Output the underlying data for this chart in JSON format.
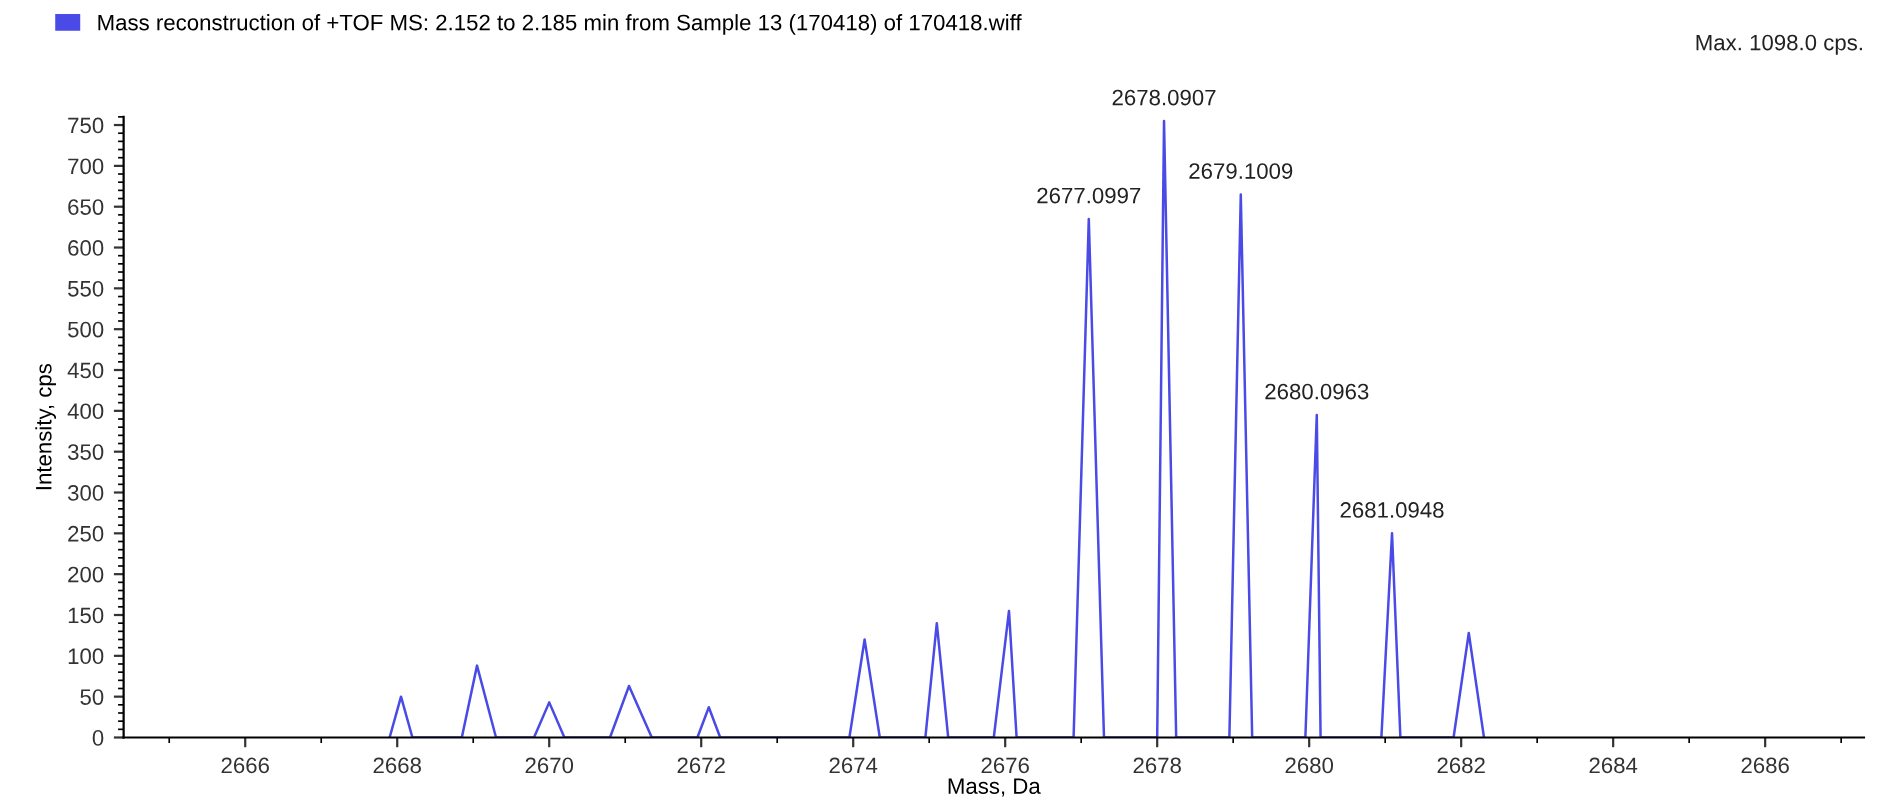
{
  "chart_data": {
    "type": "line",
    "xlabel": "Mass, Da",
    "ylabel": "Intensity, cps",
    "xlim": [
      2664.4,
      2687.3
    ],
    "ylim": [
      0,
      760
    ],
    "xticks": [
      2666,
      2668,
      2670,
      2672,
      2674,
      2676,
      2678,
      2680,
      2682,
      2684,
      2686
    ],
    "yticks": [
      0,
      50,
      100,
      150,
      200,
      250,
      300,
      350,
      400,
      450,
      500,
      550,
      600,
      650,
      700,
      750
    ],
    "grid": false,
    "legend": "top left",
    "marker": "none",
    "line_style": "solid",
    "series": [
      {
        "name": "Mass reconstruction of +TOF MS: 2.152 to 2.185 min from Sample 13 (170418) of 170418.wiff",
        "color": "#4a4ae6",
        "x": [
          2667.9,
          2668.05,
          2668.2,
          2668.85,
          2669.05,
          2669.3,
          2669.8,
          2670.0,
          2670.2,
          2670.8,
          2671.05,
          2671.35,
          2671.95,
          2672.1,
          2672.25,
          2673.95,
          2674.15,
          2674.35,
          2674.95,
          2675.1,
          2675.25,
          2675.85,
          2676.05,
          2676.15,
          2676.9,
          2677.1,
          2677.3,
          2678.0,
          2678.09,
          2678.25,
          2678.95,
          2679.1,
          2679.25,
          2679.95,
          2680.1,
          2680.15,
          2680.95,
          2681.09,
          2681.2,
          2681.9,
          2682.1,
          2682.3
        ],
        "values": [
          0,
          50,
          0,
          0,
          88,
          0,
          0,
          43,
          0,
          0,
          63,
          0,
          0,
          37,
          0,
          0,
          120,
          0,
          0,
          140,
          0,
          0,
          155,
          0,
          0,
          635,
          0,
          0,
          755,
          0,
          0,
          665,
          0,
          0,
          395,
          0,
          0,
          250,
          0,
          0,
          128,
          0
        ]
      }
    ],
    "annotations": [
      {
        "text": "2677.0997",
        "x": 2677.1,
        "y": 635
      },
      {
        "text": "2678.0907",
        "x": 2678.09,
        "y": 755
      },
      {
        "text": "2679.1009",
        "x": 2679.1,
        "y": 665
      },
      {
        "text": "2680.0963",
        "x": 2680.1,
        "y": 395
      },
      {
        "text": "2681.0948",
        "x": 2681.09,
        "y": 250
      },
      "Max. 1098.0 cps."
    ]
  }
}
